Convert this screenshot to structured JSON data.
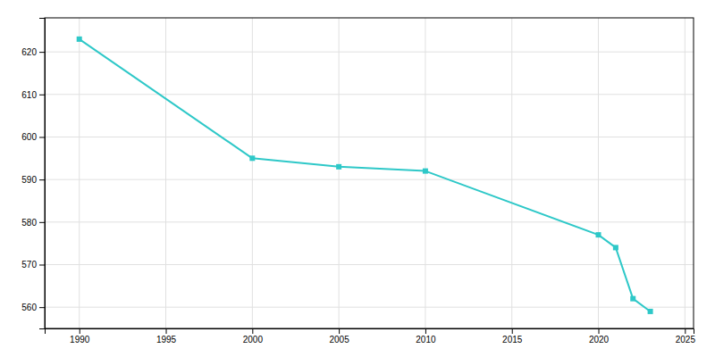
{
  "chart_data": {
    "type": "line",
    "x": [
      1990,
      2000,
      2005,
      2010,
      2020,
      2021,
      2022,
      2023
    ],
    "values": [
      623,
      595,
      593,
      592,
      577,
      574,
      562,
      559
    ],
    "color": "#2ec8c8",
    "marker": "square",
    "xlim": [
      1988,
      2025.5
    ],
    "ylim": [
      555,
      628
    ],
    "xticks": [
      1990,
      1995,
      2000,
      2005,
      2010,
      2015,
      2020,
      2025
    ],
    "yticks": [
      560,
      570,
      580,
      590,
      600,
      610,
      620
    ],
    "grid": true
  }
}
